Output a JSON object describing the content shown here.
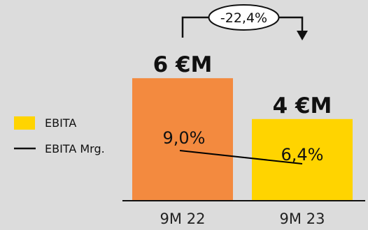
{
  "chart_data": {
    "type": "bar",
    "categories": [
      "9M 22",
      "9M 23"
    ],
    "series": [
      {
        "name": "EBITA",
        "values": [
          6,
          4
        ],
        "labels": [
          "6 €M",
          "4 €M"
        ],
        "colors": [
          "#f38a3f",
          "#ffd400"
        ]
      },
      {
        "name": "EBITA Mrg.",
        "type": "line",
        "values": [
          9.0,
          6.4
        ],
        "labels": [
          "9,0%",
          "6,4%"
        ],
        "color": "#000000"
      }
    ],
    "change_label": "-22,4%",
    "legend_position": "left"
  },
  "legend": {
    "bar_label": "EBITA",
    "line_label": "EBITA Mrg."
  }
}
